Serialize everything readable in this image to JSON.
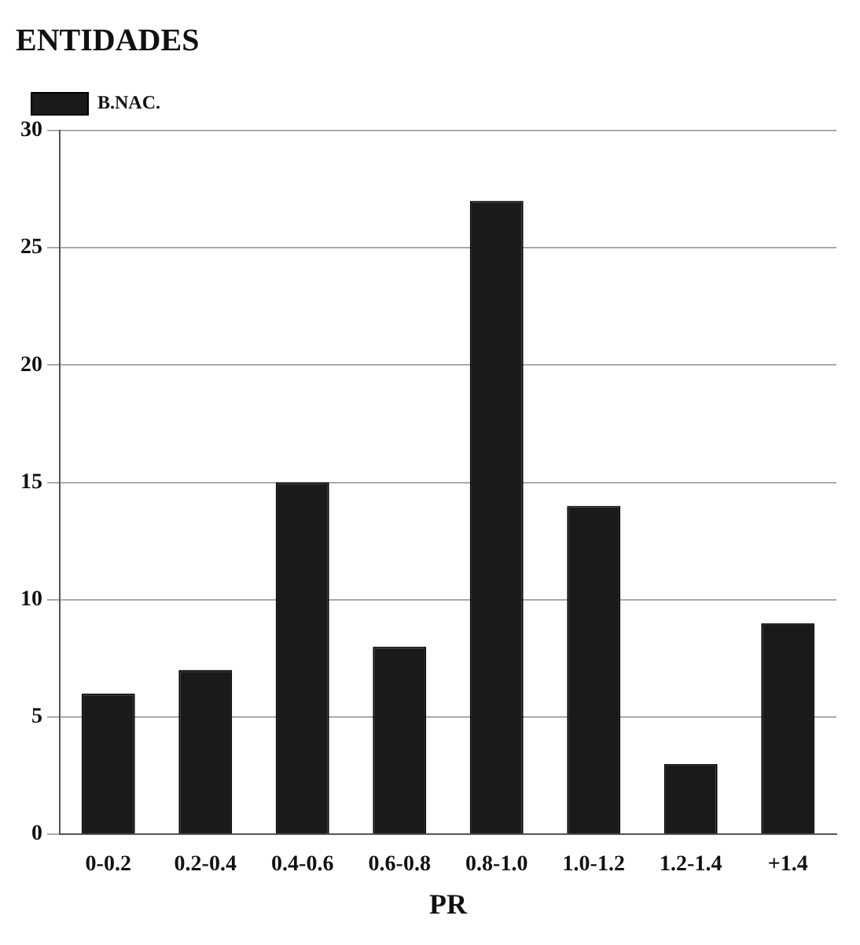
{
  "chart_data": {
    "type": "bar",
    "title": "ENTIDADES",
    "xlabel": "PR",
    "categories": [
      "0-0.2",
      "0.2-0.4",
      "0.4-0.6",
      "0.6-0.8",
      "0.8-1.0",
      "1.0-1.2",
      "1.2-1.4",
      "+1.4"
    ],
    "series": [
      {
        "name": "B.NAC.",
        "color": "#1a1a1a",
        "values": [
          6,
          7,
          15,
          8,
          27,
          14,
          3,
          9
        ]
      }
    ],
    "ylim": [
      0,
      30
    ],
    "yticks": [
      0,
      5,
      10,
      15,
      20,
      25,
      30
    ],
    "grid": "y",
    "legend": "top left"
  }
}
